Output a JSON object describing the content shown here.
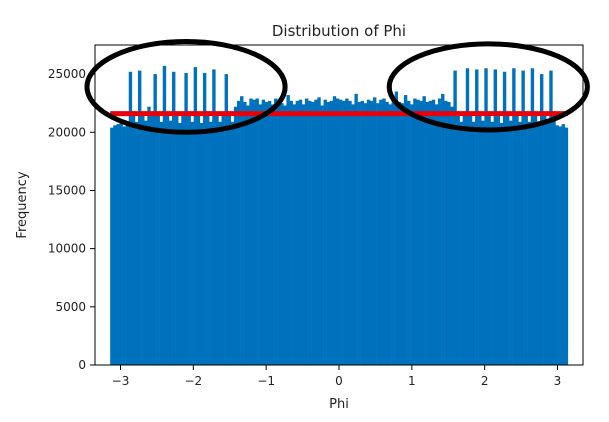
{
  "chart_data": {
    "type": "bar",
    "title": "Distribution of Phi",
    "xlabel": "Phi",
    "ylabel": "Frequency",
    "xlim": [
      -3.35,
      3.35
    ],
    "ylim": [
      0,
      27500
    ],
    "xticks": [
      -3,
      -2,
      -1,
      0,
      1,
      2,
      3
    ],
    "xtick_labels": [
      "−3",
      "−2",
      "−1",
      "0",
      "1",
      "2",
      "3"
    ],
    "yticks": [
      0,
      5000,
      10000,
      15000,
      20000,
      25000
    ],
    "ytick_labels": [
      "0",
      "5000",
      "10000",
      "15000",
      "20000",
      "25000"
    ],
    "grid": false,
    "bar_color": "#0072bd",
    "bins": {
      "start": -3.1416,
      "end": 3.1416,
      "counts": [
        20400,
        20600,
        20700,
        20800,
        20500,
        20600,
        25200,
        21800,
        20900,
        25300,
        21700,
        21000,
        22200,
        21800,
        25000,
        21700,
        20900,
        25700,
        21600,
        21000,
        25200,
        21700,
        20800,
        21600,
        25100,
        21800,
        20900,
        25600,
        21700,
        20800,
        25100,
        21800,
        20900,
        25400,
        21600,
        20900,
        21700,
        25000,
        21800,
        20900,
        22200,
        22700,
        23100,
        22600,
        22300,
        22900,
        22800,
        22900,
        22400,
        22800,
        22600,
        22700,
        22400,
        22900,
        22700,
        22500,
        22300,
        23200,
        22700,
        22400,
        22700,
        22800,
        22400,
        22900,
        22700,
        22600,
        22800,
        23000,
        22300,
        22800,
        22600,
        22700,
        23100,
        22900,
        22800,
        22700,
        22900,
        22700,
        22400,
        23300,
        22600,
        22700,
        22500,
        22800,
        22700,
        23000,
        22500,
        22800,
        22900,
        22600,
        22400,
        22700,
        23500,
        22600,
        22500,
        23200,
        22700,
        22400,
        22900,
        22800,
        22700,
        23100,
        22600,
        22700,
        22800,
        22400,
        22900,
        23300,
        22700,
        22600,
        22200,
        25300,
        21800,
        20900,
        21700,
        25500,
        21600,
        20900,
        25400,
        21800,
        21000,
        25500,
        21700,
        20900,
        25400,
        21800,
        20800,
        25200,
        21700,
        21000,
        25500,
        21600,
        20900,
        25300,
        21800,
        20900,
        25500,
        21600,
        20800,
        25000,
        21700,
        21000,
        25300,
        21800,
        20600,
        20500,
        20700,
        20400
      ]
    },
    "annotations": {
      "reference_line": {
        "y": 21600,
        "x_from": -3.1416,
        "x_to": 3.1416,
        "color": "#e8000b"
      },
      "ellipses": [
        {
          "center_x": -2.1,
          "center_y": 23900,
          "radius_x": 1.36,
          "radius_y": 3900,
          "color": "#000000"
        },
        {
          "center_x": 2.05,
          "center_y": 23900,
          "radius_x": 1.36,
          "radius_y": 3700,
          "color": "#000000"
        }
      ]
    }
  }
}
